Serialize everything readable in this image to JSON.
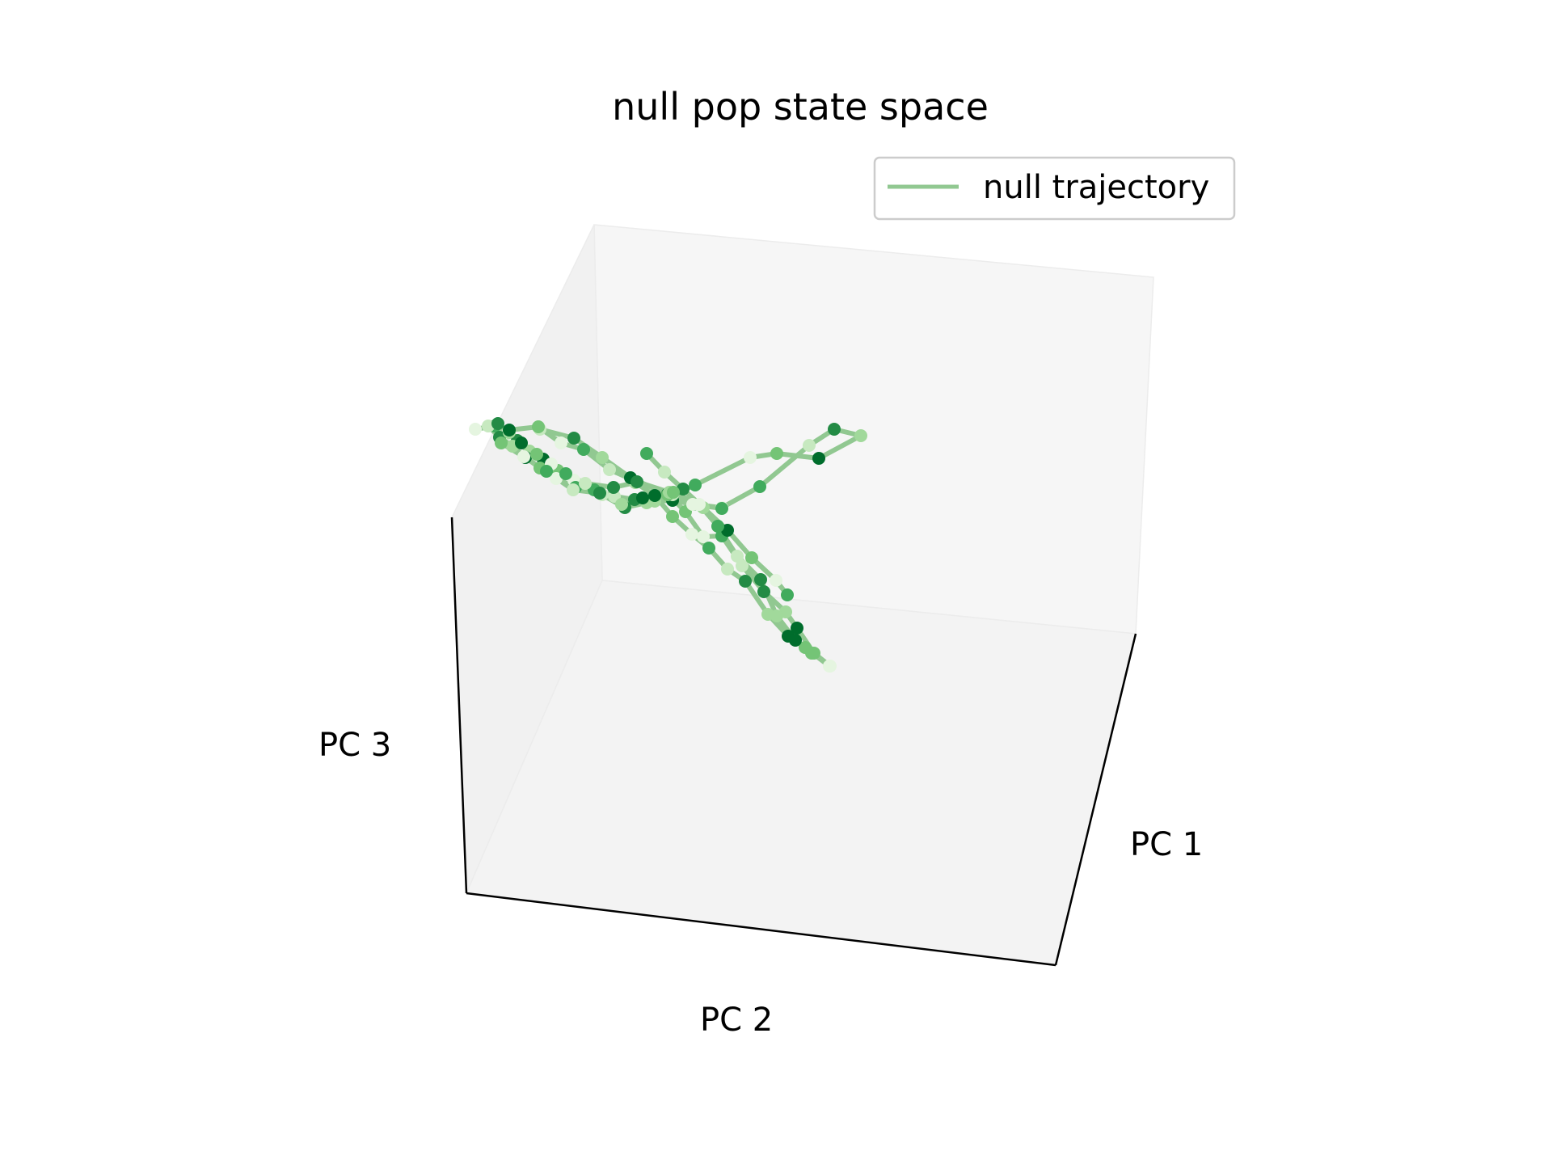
{
  "chart_data": {
    "type": "line",
    "projection": "3d",
    "title": "null pop state space",
    "xlabel": "PC 1",
    "ylabel": "PC 2",
    "zlabel": "PC 3",
    "grid": false,
    "legend": {
      "position": "top-right",
      "entries": [
        {
          "label": "null trajectory",
          "color": "#91c891"
        }
      ]
    },
    "colors": {
      "line": "#91c891",
      "pane_back": "#f6f6f6",
      "pane_side": "#f1f1f1",
      "pane_floor": "#f3f3f3",
      "axis_line": "#000000",
      "marker_colormap": "Greens",
      "marker_colors": [
        "#e5f5e0",
        "#c7e9c0",
        "#a1d99b",
        "#74c476",
        "#41ab5d",
        "#238b45",
        "#006d2c"
      ]
    },
    "series": [
      {
        "name": "null trajectory",
        "note_units": "projected view coordinates",
        "points": [
          [
            588,
            531
          ],
          [
            612,
            527
          ],
          [
            628,
            536
          ],
          [
            640,
            545
          ],
          [
            655,
            558
          ],
          [
            672,
            568
          ],
          [
            690,
            582
          ],
          [
            710,
            594
          ],
          [
            735,
            606
          ],
          [
            760,
            614
          ],
          [
            785,
            618
          ],
          [
            810,
            620
          ],
          [
            832,
            619
          ],
          [
            858,
            624
          ],
          [
            893,
            628
          ],
          [
            940,
            602
          ],
          [
            1001,
            551
          ],
          [
            1032,
            531
          ],
          [
            1065,
            539
          ],
          [
            1013,
            567
          ],
          [
            961,
            561
          ],
          [
            928,
            566
          ],
          [
            860,
            600
          ],
          [
            832,
            612
          ]
        ]
      },
      {
        "name": "null trajectory",
        "points": [
          [
            604,
            527
          ],
          [
            618,
            541
          ],
          [
            634,
            552
          ],
          [
            650,
            566
          ],
          [
            668,
            579
          ],
          [
            688,
            592
          ],
          [
            712,
            603
          ],
          [
            745,
            612
          ],
          [
            773,
            628
          ],
          [
            800,
            622
          ],
          [
            826,
            611
          ],
          [
            848,
            633
          ],
          [
            870,
            664
          ],
          [
            893,
            663
          ],
          [
            918,
            700
          ],
          [
            945,
            732
          ],
          [
            972,
            757
          ],
          [
            986,
            777
          ],
          [
            1007,
            808
          ],
          [
            1027,
            824
          ]
        ]
      },
      {
        "name": "null trajectory",
        "points": [
          [
            616,
            524
          ],
          [
            630,
            535
          ],
          [
            645,
            548
          ],
          [
            664,
            562
          ],
          [
            682,
            574
          ],
          [
            700,
            586
          ],
          [
            724,
            598
          ],
          [
            759,
            603
          ],
          [
            786,
            597
          ],
          [
            810,
            613
          ],
          [
            832,
            639
          ],
          [
            856,
            661
          ],
          [
            877,
            678
          ],
          [
            900,
            704
          ],
          [
            922,
            719
          ],
          [
            950,
            760
          ],
          [
            975,
            787
          ],
          [
            996,
            801
          ],
          [
            1026,
            824
          ]
        ]
      },
      {
        "name": "null trajectory",
        "points": [
          [
            668,
            531
          ],
          [
            710,
            542
          ],
          [
            745,
            566
          ],
          [
            780,
            591
          ],
          [
            826,
            612
          ],
          [
            857,
            624
          ],
          [
            893,
            629
          ]
        ]
      },
      {
        "name": "null trajectory",
        "points": [
          [
            630,
            532
          ],
          [
            666,
            528
          ],
          [
            694,
            548
          ],
          [
            722,
            556
          ],
          [
            754,
            581
          ],
          [
            788,
            596
          ],
          [
            828,
            609
          ]
        ]
      },
      {
        "name": "null trajectory",
        "points": [
          [
            800,
            561
          ],
          [
            822,
            584
          ],
          [
            845,
            605
          ],
          [
            870,
            628
          ],
          [
            900,
            656
          ],
          [
            930,
            690
          ],
          [
            960,
            718
          ],
          [
            974,
            736
          ]
        ]
      },
      {
        "name": "null trajectory",
        "points": [
          [
            620,
            548
          ],
          [
            648,
            565
          ],
          [
            676,
            583
          ],
          [
            709,
            606
          ],
          [
            742,
            610
          ],
          [
            769,
            624
          ],
          [
            795,
            616
          ],
          [
            833,
            609
          ],
          [
            865,
            624
          ],
          [
            888,
            651
          ],
          [
            912,
            688
          ],
          [
            941,
            717
          ],
          [
            961,
            762
          ],
          [
            984,
            792
          ],
          [
            1004,
            808
          ]
        ]
      }
    ]
  }
}
